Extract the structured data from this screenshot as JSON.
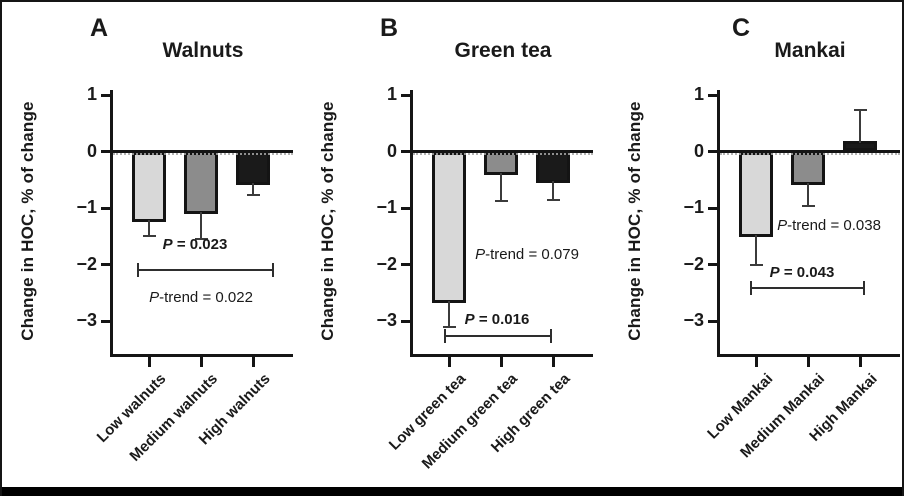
{
  "figure": {
    "y_axis_label": "Change in HOC, % of change",
    "y_ticks": [
      "1",
      "0",
      "−1",
      "−2",
      "−3"
    ],
    "y_tick_values": [
      1,
      0,
      -1,
      -2,
      -3
    ]
  },
  "colors": {
    "low_bar_fill": "#d8d8d8",
    "medium_bar_fill": "#8c8c8c",
    "high_bar_fill": "#1a1a1a",
    "bar_outline": "#141414",
    "error_bar": "#3b3b3b",
    "axis": "#151515",
    "background": "#ffffff"
  },
  "chart_data": [
    {
      "type": "bar",
      "panel_letter": "A",
      "title": "Walnuts",
      "ylabel": "Change in HOC, % of change",
      "ylim": [
        -3.6,
        1.1
      ],
      "grid": false,
      "categories": [
        "Low walnuts",
        "Medium walnuts",
        "High walnuts"
      ],
      "values": [
        -1.25,
        -1.1,
        -0.6
      ],
      "errors": [
        0.25,
        0.45,
        0.17
      ],
      "error_direction": [
        "down",
        "down",
        "down"
      ],
      "bar_fills": [
        "#d8d8d8",
        "#8c8c8c",
        "#1a1a1a"
      ],
      "p_comparison": {
        "label": "P = 0.023",
        "from": "Low walnuts",
        "to": "High walnuts",
        "bar_y": -2.08
      },
      "p_trend": {
        "label": "P-trend = 0.022"
      }
    },
    {
      "type": "bar",
      "panel_letter": "B",
      "title": "Green tea",
      "ylabel": "Change in HOC, % of change",
      "ylim": [
        -3.6,
        1.1
      ],
      "grid": false,
      "categories": [
        "Low green tea",
        "Medium green tea",
        "High green tea"
      ],
      "values": [
        -2.68,
        -0.42,
        -0.55
      ],
      "errors": [
        0.42,
        0.45,
        0.3
      ],
      "error_direction": [
        "down",
        "down",
        "down"
      ],
      "bar_fills": [
        "#d8d8d8",
        "#8c8c8c",
        "#1a1a1a"
      ],
      "p_comparison": {
        "label": "P = 0.016",
        "from": "Low green tea",
        "to": "High green tea",
        "bar_y": -3.25
      },
      "p_trend": {
        "label": "P-trend = 0.079"
      }
    },
    {
      "type": "bar",
      "panel_letter": "C",
      "title": "Mankai",
      "ylabel": "Change in HOC, % of change",
      "ylim": [
        -3.6,
        1.1
      ],
      "grid": false,
      "categories": [
        "Low Mankai",
        "Medium Mankai",
        "High Mankai"
      ],
      "values": [
        -1.52,
        -0.6,
        0.18
      ],
      "errors": [
        0.48,
        0.37,
        0.55
      ],
      "error_direction": [
        "down",
        "down",
        "up"
      ],
      "bar_fills": [
        "#d8d8d8",
        "#8c8c8c",
        "#1a1a1a"
      ],
      "p_comparison": {
        "label": "P = 0.043",
        "from": "Low Mankai",
        "to": "High Mankai",
        "bar_y": -2.41
      },
      "p_trend": {
        "label": "P-trend = 0.038"
      }
    }
  ]
}
